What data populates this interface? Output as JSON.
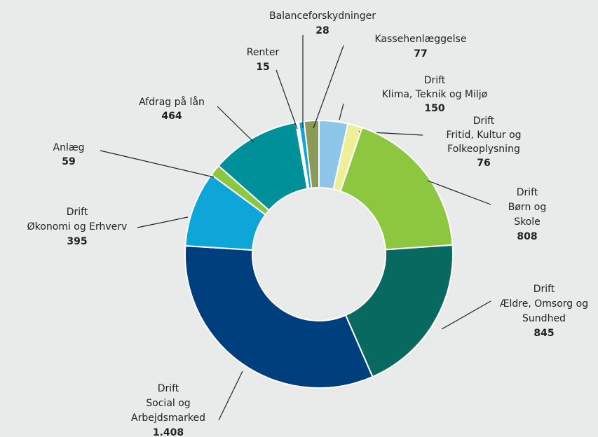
{
  "chart_data": {
    "type": "donut",
    "labels": [
      [
        "Drift",
        "Klima, Teknik og Miljø"
      ],
      [
        "Drift",
        "Fritid, Kultur og",
        "Folkeoplysning"
      ],
      [
        "Drift",
        "Børn og",
        "Skole"
      ],
      [
        "Drift",
        "Ældre, Omsorg og",
        "Sundhed"
      ],
      [
        "Drift",
        "Social og",
        "Arbejdsmarked"
      ],
      [
        "Drift",
        "Økonomi og Erhverv"
      ],
      [
        "Anlæg"
      ],
      [
        "Afdrag på lån"
      ],
      [
        "Renter"
      ],
      [
        "Balanceforskydninger"
      ],
      [
        "Kassehenlæggelse"
      ]
    ],
    "values": [
      150,
      76,
      808,
      845,
      1408,
      395,
      59,
      464,
      15,
      28,
      77
    ],
    "value_labels": [
      "150",
      "76",
      "808",
      "845",
      "1.408",
      "395",
      "59",
      "464",
      "15",
      "28",
      "77"
    ],
    "colors": [
      "#8ec6ea",
      "#eef099",
      "#8dc63f",
      "#07695f",
      "#003f7d",
      "#0ea5d9",
      "#8dc63f",
      "#00909a",
      "#ffffff",
      "#0ea5d9",
      "#8c9a57"
    ]
  }
}
